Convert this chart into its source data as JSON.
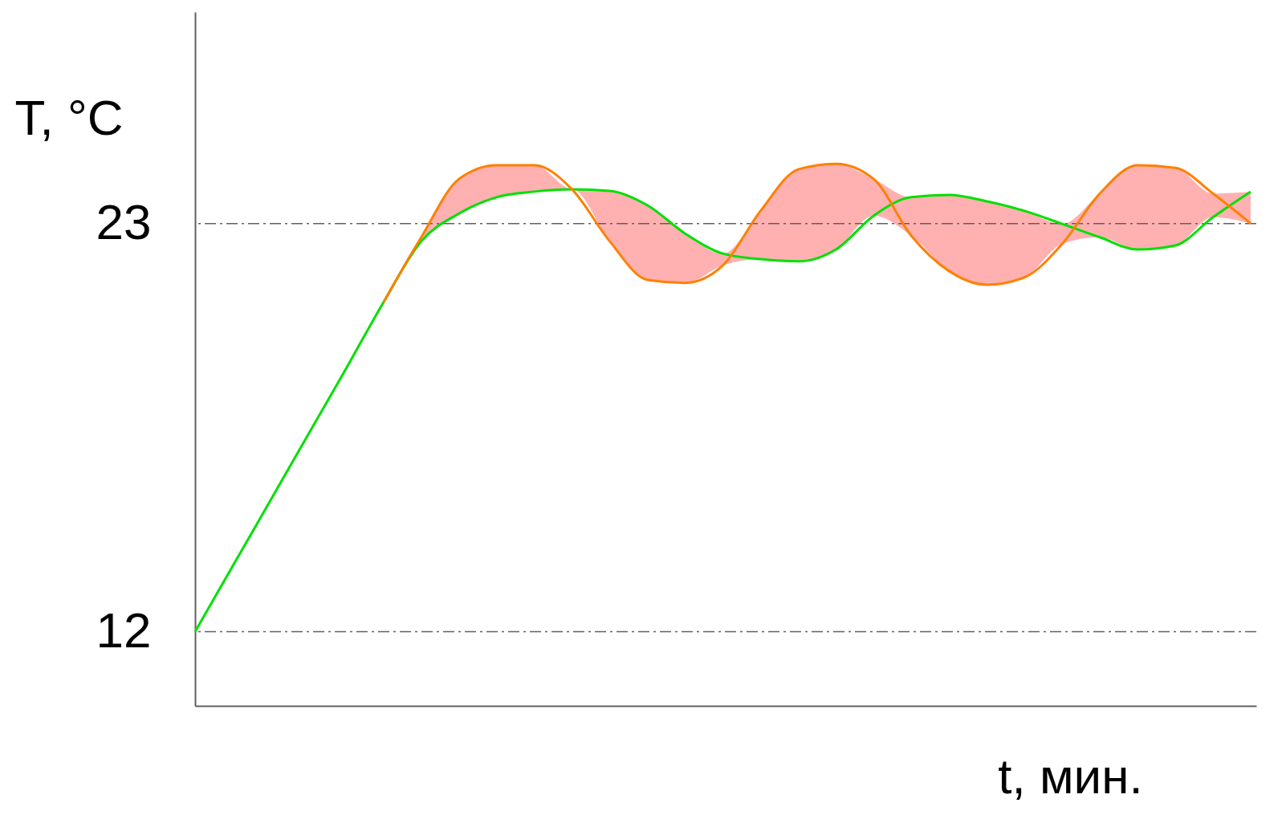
{
  "chart_data": {
    "type": "line",
    "xlabel": "t, мин.",
    "ylabel": "T, °C",
    "categories": [
      null,
      null,
      null,
      null,
      null,
      null,
      null,
      null,
      null,
      null,
      null,
      null,
      null,
      null,
      null,
      null,
      null,
      null,
      null,
      null,
      null,
      null,
      null,
      null,
      null,
      null,
      null,
      null,
      null
    ],
    "series": [
      {
        "color": "#00e000",
        "values": [
          12.0,
          13.77,
          15.54,
          17.31,
          19.08,
          20.88,
          22.52,
          23.27,
          23.71,
          23.86,
          23.92,
          23.88,
          23.49,
          22.73,
          22.19,
          22.04,
          21.98,
          22.3,
          23.21,
          23.71,
          23.77,
          23.6,
          23.34,
          22.99,
          22.63,
          22.3,
          22.41,
          23.17,
          23.86
        ]
      },
      {
        "color": "#ff8000",
        "values": [
          null,
          null,
          null,
          null,
          null,
          20.88,
          22.63,
          24.2,
          24.57,
          24.57,
          23.92,
          22.52,
          21.48,
          21.4,
          21.87,
          23.34,
          24.46,
          24.61,
          24.2,
          22.67,
          21.72,
          21.35,
          21.55,
          22.45,
          23.81,
          24.57,
          24.5,
          23.81,
          23.0
        ],
        "lower": [
          null,
          null,
          null,
          null,
          null,
          20.88,
          22.52,
          23.27,
          23.71,
          23.86,
          23.92,
          22.52,
          21.48,
          21.4,
          21.87,
          22.04,
          21.98,
          22.3,
          23.21,
          22.67,
          21.72,
          21.35,
          21.55,
          22.45,
          22.63,
          22.3,
          22.41,
          23.17,
          23.0
        ],
        "upper": [
          null,
          null,
          null,
          null,
          null,
          20.88,
          22.63,
          24.2,
          24.57,
          24.57,
          23.92,
          23.88,
          23.49,
          22.73,
          22.19,
          23.34,
          24.46,
          24.61,
          24.2,
          23.71,
          23.77,
          23.6,
          23.34,
          22.99,
          23.81,
          24.57,
          24.5,
          23.81,
          23.86
        ]
      }
    ],
    "ylim": [
      10,
      28.7
    ],
    "yticks": [
      12,
      23
    ],
    "grid": false,
    "tick_labels": "y",
    "marker": "none",
    "line_style": "solid",
    "ref_lines": [
      {
        "axis": "y",
        "value": 23,
        "color": "#606060",
        "line_style": "dashdot"
      },
      {
        "axis": "y",
        "value": 12,
        "color": "#606060",
        "line_style": "dashdot"
      }
    ]
  }
}
